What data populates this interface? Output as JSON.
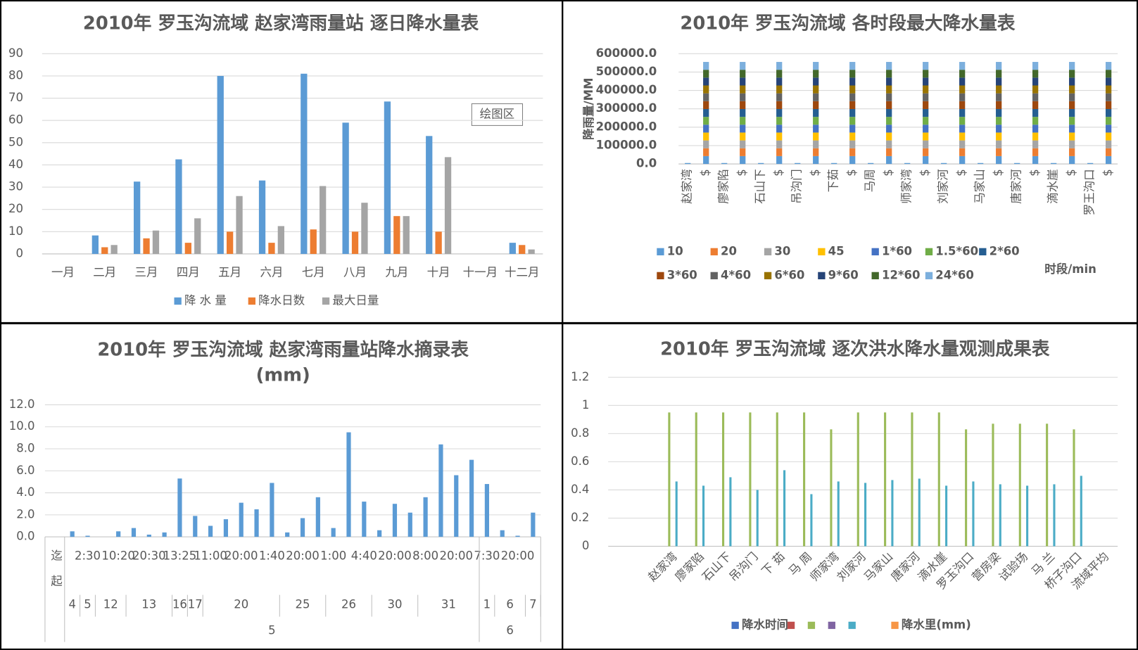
{
  "chart_data": [
    {
      "type": "bar",
      "title": "2010年 罗玉沟流域 赵家湾雨量站 逐日降水量表",
      "categories": [
        "一月",
        "二月",
        "三月",
        "四月",
        "五月",
        "六月",
        "七月",
        "八月",
        "九月",
        "十月",
        "十一月",
        "十二月"
      ],
      "series": [
        {
          "name": "降 水 量",
          "color": "#5b9bd5",
          "values": [
            null,
            8.3,
            32.5,
            42.5,
            80,
            33,
            81,
            59,
            68.5,
            53,
            null,
            5
          ]
        },
        {
          "name": "降水日数",
          "color": "#ed7d31",
          "values": [
            null,
            3,
            7,
            5,
            10,
            5,
            11,
            10,
            17,
            10,
            null,
            4
          ]
        },
        {
          "name": "最大日量",
          "color": "#a5a5a5",
          "values": [
            null,
            4,
            10.5,
            16,
            26,
            12.5,
            30.5,
            23,
            17,
            43.5,
            null,
            2
          ]
        }
      ],
      "ylim": [
        0,
        90
      ],
      "yticks": [
        0,
        10,
        20,
        30,
        40,
        50,
        60,
        70,
        80,
        90
      ],
      "grid": true,
      "legend": "bottom",
      "annotation": "绘图区"
    },
    {
      "type": "bar",
      "stacked": true,
      "title": "2010年 罗玉沟流域 各时段最大降水量表",
      "y_label": "降雨量/MM",
      "x_label": "时段/min",
      "categories": [
        "赵家湾",
        "$",
        "廖家陷",
        "$",
        "石山下",
        "$",
        "吊沟门",
        "$",
        "下茹",
        "$",
        "马周",
        "$",
        "师家湾",
        "$",
        "刘家河",
        "$",
        "马家山",
        "$",
        "唐家河",
        "$",
        "滴水崖",
        "$",
        "罗王沟口",
        "$"
      ],
      "series": [
        {
          "name": "10",
          "color": "#5b9bd5",
          "values": [
            5000,
            42700,
            5000,
            42700,
            5000,
            42700,
            5000,
            42700,
            5000,
            42700,
            5000,
            42700,
            5000,
            42700,
            5000,
            42700,
            5000,
            42700,
            5000,
            42700,
            5000,
            42700,
            5000,
            42700
          ]
        },
        {
          "name": "20",
          "color": "#ed7d31",
          "values": [
            null,
            42700,
            null,
            42700,
            null,
            42700,
            null,
            42700,
            null,
            42700,
            null,
            42700,
            null,
            42700,
            null,
            42700,
            null,
            42700,
            null,
            42700,
            null,
            42700,
            null,
            42700
          ]
        },
        {
          "name": "30",
          "color": "#a5a5a5",
          "values": [
            null,
            42700,
            null,
            42700,
            null,
            42700,
            null,
            42700,
            null,
            42700,
            null,
            42700,
            null,
            42700,
            null,
            42700,
            null,
            42700,
            null,
            42700,
            null,
            42700,
            null,
            42700
          ]
        },
        {
          "name": "45",
          "color": "#ffc000",
          "values": [
            null,
            42700,
            null,
            42700,
            null,
            42700,
            null,
            42700,
            null,
            42700,
            null,
            42700,
            null,
            42700,
            null,
            42700,
            null,
            42700,
            null,
            42700,
            null,
            42700,
            null,
            42700
          ]
        },
        {
          "name": "1*60",
          "color": "#4472c4",
          "values": [
            null,
            42700,
            null,
            42700,
            null,
            42700,
            null,
            42700,
            null,
            42700,
            null,
            42700,
            null,
            42700,
            null,
            42700,
            null,
            42700,
            null,
            42700,
            null,
            42700,
            null,
            42700
          ]
        },
        {
          "name": "1.5*60",
          "color": "#70ad47",
          "values": [
            null,
            42700,
            null,
            42700,
            null,
            42700,
            null,
            42700,
            null,
            42700,
            null,
            42700,
            null,
            42700,
            null,
            42700,
            null,
            42700,
            null,
            42700,
            null,
            42700,
            null,
            42700
          ]
        },
        {
          "name": "2*60",
          "color": "#255e91",
          "values": [
            null,
            42700,
            null,
            42700,
            null,
            42700,
            null,
            42700,
            null,
            42700,
            null,
            42700,
            null,
            42700,
            null,
            42700,
            null,
            42700,
            null,
            42700,
            null,
            42700,
            null,
            42700
          ]
        },
        {
          "name": "3*60",
          "color": "#9e480e",
          "values": [
            null,
            42700,
            null,
            42700,
            null,
            42700,
            null,
            42700,
            null,
            42700,
            null,
            42700,
            null,
            42700,
            null,
            42700,
            null,
            42700,
            null,
            42700,
            null,
            42700,
            null,
            42700
          ]
        },
        {
          "name": "4*60",
          "color": "#636363",
          "values": [
            null,
            42700,
            null,
            42700,
            null,
            42700,
            null,
            42700,
            null,
            42700,
            null,
            42700,
            null,
            42700,
            null,
            42700,
            null,
            42700,
            null,
            42700,
            null,
            42700,
            null,
            42700
          ]
        },
        {
          "name": "6*60",
          "color": "#997300",
          "values": [
            null,
            42700,
            null,
            42700,
            null,
            42700,
            null,
            42700,
            null,
            42700,
            null,
            42700,
            null,
            42700,
            null,
            42700,
            null,
            42700,
            null,
            42700,
            null,
            42700,
            null,
            42700
          ]
        },
        {
          "name": "9*60",
          "color": "#264478",
          "values": [
            null,
            42700,
            null,
            42700,
            null,
            42700,
            null,
            42700,
            null,
            42700,
            null,
            42700,
            null,
            42700,
            null,
            42700,
            null,
            42700,
            null,
            42700,
            null,
            42700,
            null,
            42700
          ]
        },
        {
          "name": "12*60",
          "color": "#43682b",
          "values": [
            null,
            42700,
            null,
            42700,
            null,
            42700,
            null,
            42700,
            null,
            42700,
            null,
            42700,
            null,
            42700,
            null,
            42700,
            null,
            42700,
            null,
            42700,
            null,
            42700,
            null,
            42700
          ]
        },
        {
          "name": "24*60",
          "color": "#7cafdd",
          "values": [
            null,
            42700,
            null,
            42700,
            null,
            42700,
            null,
            42700,
            null,
            42700,
            null,
            42700,
            null,
            42700,
            null,
            42700,
            null,
            42700,
            null,
            42700,
            null,
            42700,
            null,
            42700
          ]
        }
      ],
      "ylim": [
        0,
        600000
      ],
      "yticks": [
        {
          "value": 0,
          "label": "0.0"
        },
        {
          "value": 100000,
          "label": "100000.0"
        },
        {
          "value": 200000,
          "label": "200000.0"
        },
        {
          "value": 300000,
          "label": "300000.0"
        },
        {
          "value": 400000,
          "label": "400000.0"
        },
        {
          "value": 500000,
          "label": "500000.0"
        },
        {
          "value": 600000,
          "label": "600000.0"
        }
      ],
      "grid": true,
      "legend": "bottom"
    },
    {
      "type": "bar",
      "title": "2010年 罗玉沟流域 赵家湾雨量站降水摘录表",
      "subtitle": "(mm)",
      "row_headers": [
        "迄",
        "起"
      ],
      "categories": [
        null,
        "2:30",
        null,
        "10:20",
        null,
        "20:30",
        null,
        "13:25",
        null,
        "11:00",
        null,
        "20:00",
        null,
        "1:40",
        null,
        "20:00",
        null,
        "1:00",
        null,
        "4:40",
        null,
        "20:00",
        null,
        "8:00",
        null,
        "20:00",
        null,
        "7:30",
        null,
        "20:00",
        null
      ],
      "day_groups": [
        {
          "label": "4",
          "count": 1
        },
        {
          "label": "5",
          "count": 1
        },
        {
          "label": "12",
          "count": 2
        },
        {
          "label": "13",
          "count": 3
        },
        {
          "label": "16",
          "count": 1
        },
        {
          "label": "17",
          "count": 1
        },
        {
          "label": "20",
          "count": 5
        },
        {
          "label": "25",
          "count": 3
        },
        {
          "label": "26",
          "count": 3
        },
        {
          "label": "30",
          "count": 3
        },
        {
          "label": "31",
          "count": 4
        },
        {
          "label": "1",
          "count": 1
        },
        {
          "label": "6",
          "count": 2
        },
        {
          "label": "7",
          "count": 1
        }
      ],
      "month_groups": [
        {
          "label": "5",
          "count": 27
        },
        {
          "label": "6",
          "count": 4
        }
      ],
      "series": [
        {
          "color": "#5b9bd5",
          "values": [
            0.5,
            0.1,
            0,
            0.5,
            0.8,
            0.2,
            0.4,
            5.3,
            1.9,
            1.0,
            1.6,
            3.1,
            2.5,
            4.9,
            0.4,
            1.7,
            3.6,
            0.8,
            9.5,
            3.2,
            0.6,
            3.0,
            2.2,
            3.6,
            8.4,
            5.6,
            7.0,
            4.8,
            0.6,
            0.1,
            2.2
          ]
        }
      ],
      "ylim": [
        0,
        12
      ],
      "yticks": [
        {
          "value": 0,
          "label": "0.0"
        },
        {
          "value": 2,
          "label": "2.0"
        },
        {
          "value": 4,
          "label": "4.0"
        },
        {
          "value": 6,
          "label": "6.0"
        },
        {
          "value": 8,
          "label": "8.0"
        },
        {
          "value": 10,
          "label": "10.0"
        },
        {
          "value": 12,
          "label": "12.0"
        }
      ],
      "grid": true
    },
    {
      "type": "bar",
      "title": "2010年 罗玉沟流域 逐次洪水降水量观测成果表",
      "categories": [
        "赵家湾",
        "廖家陷",
        "石山下",
        "吊沟门",
        "下 茹",
        "马 周",
        "师家湾",
        "刘家河",
        "马家山",
        "唐家河",
        "滴水崖",
        "罗玉沟口",
        "营房梁",
        "试验场",
        "马 兰",
        "桥子沟口",
        "流域平均"
      ],
      "series": [
        {
          "name": "降水时间",
          "color": "#4472c4",
          "values": [
            null,
            null,
            null,
            null,
            null,
            null,
            null,
            null,
            null,
            null,
            null,
            null,
            null,
            null,
            null,
            null,
            null
          ]
        },
        {
          "name": null,
          "color": "#c0504d",
          "values": [
            null,
            null,
            null,
            null,
            null,
            null,
            null,
            null,
            null,
            null,
            null,
            null,
            null,
            null,
            null,
            null,
            null
          ]
        },
        {
          "name": null,
          "color": "#9bbb59",
          "values": [
            0.95,
            0.95,
            0.95,
            0.95,
            0.95,
            0.95,
            0.83,
            0.95,
            0.95,
            0.95,
            0.95,
            0.83,
            0.87,
            0.87,
            0.87,
            0.83,
            null
          ]
        },
        {
          "name": null,
          "color": "#8064a2",
          "values": [
            null,
            null,
            null,
            null,
            null,
            null,
            null,
            null,
            null,
            null,
            null,
            null,
            null,
            null,
            null,
            null,
            null
          ]
        },
        {
          "name": null,
          "color": "#4bacc6",
          "values": [
            0.46,
            0.43,
            0.49,
            0.4,
            0.54,
            0.37,
            0.46,
            0.45,
            0.47,
            0.48,
            0.43,
            0.46,
            0.44,
            0.43,
            0.44,
            0.5,
            null
          ]
        },
        {
          "name": "降水里(mm)",
          "color": "#f79646",
          "values": [
            null,
            null,
            null,
            null,
            null,
            null,
            null,
            null,
            null,
            null,
            null,
            null,
            null,
            null,
            null,
            null,
            null
          ]
        }
      ],
      "ylim": [
        0,
        1.2
      ],
      "yticks": [
        0,
        0.2,
        0.4,
        0.6,
        0.8,
        1,
        1.2
      ],
      "grid": true,
      "legend": "bottom"
    }
  ]
}
